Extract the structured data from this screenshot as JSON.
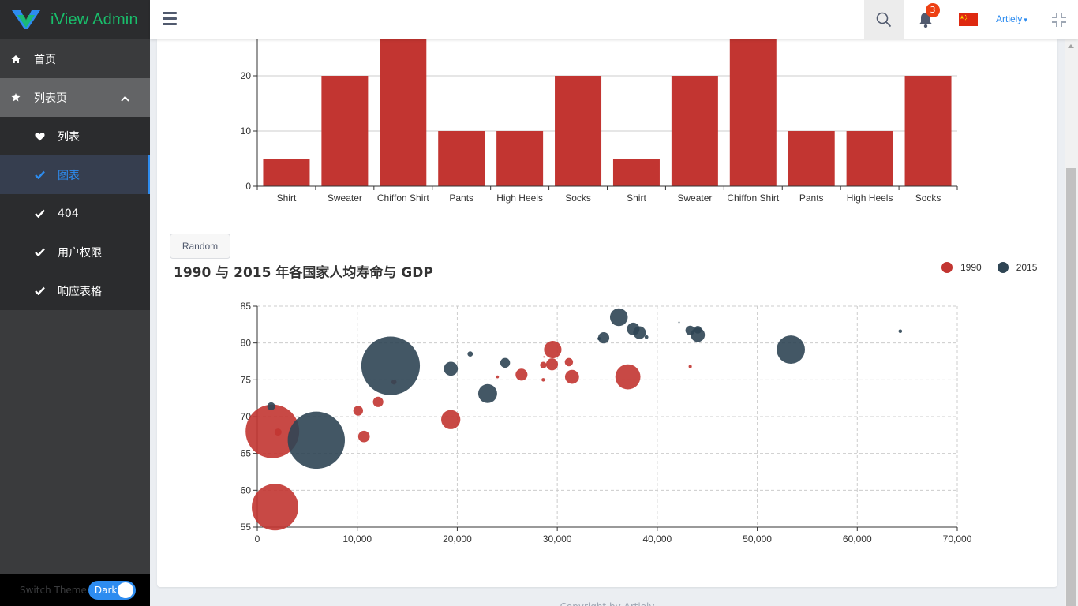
{
  "app": {
    "title": "iView Admin"
  },
  "sidebar": {
    "home": "首页",
    "list_page": "列表页",
    "items": [
      {
        "label": "列表",
        "icon": "heart-icon"
      },
      {
        "label": "图表",
        "icon": "check-icon"
      },
      {
        "label": "404",
        "icon": "check-icon"
      },
      {
        "label": "用户权限",
        "icon": "check-icon"
      },
      {
        "label": "响应表格",
        "icon": "check-icon"
      }
    ],
    "theme_label": "Switch Theme",
    "theme_value": "Dark"
  },
  "header": {
    "notification_count": "3",
    "user_name": "Artiely",
    "user_caret": "▾"
  },
  "button": {
    "random": "Random"
  },
  "footer": {
    "text": "Copyright by Artiely"
  },
  "colors": {
    "primary": "#2d8cf0",
    "bar": "#c23531",
    "series_1990": "#c23531",
    "series_2015": "#2f4554"
  },
  "chart_data": [
    {
      "type": "bar",
      "categories": [
        "Shirt",
        "Sweater",
        "Chiffon Shirt",
        "Pants",
        "High Heels",
        "Socks",
        "Shirt",
        "Sweater",
        "Chiffon Shirt",
        "Pants",
        "High Heels",
        "Socks"
      ],
      "values": [
        5,
        20,
        36,
        10,
        10,
        20,
        5,
        20,
        36,
        10,
        10,
        20
      ],
      "y_ticks": [
        "0",
        "10",
        "20"
      ],
      "ylim": [
        0,
        40
      ]
    },
    {
      "type": "scatter",
      "title": "1990 与 2015 年各国家人均寿命与 GDP",
      "xlim": [
        0,
        70000
      ],
      "ylim": [
        55,
        85
      ],
      "x_ticks": [
        "0",
        "10,000",
        "20,000",
        "30,000",
        "40,000",
        "50,000",
        "60,000",
        "70,000"
      ],
      "y_ticks": [
        "55",
        "60",
        "65",
        "70",
        "75",
        "80",
        "85"
      ],
      "series": [
        {
          "name": "1990",
          "points": [
            [
              28604,
              77,
              17096869
            ],
            [
              31163,
              77.4,
              27662440
            ],
            [
              1516,
              68,
              1154605773
            ],
            [
              13670,
              74.7,
              10582082
            ],
            [
              28599,
              75,
              4986705
            ],
            [
              29476,
              77.1,
              56943299
            ],
            [
              31476,
              75.4,
              78958237
            ],
            [
              28666,
              78.1,
              254830
            ],
            [
              1777,
              57.7,
              870601776
            ],
            [
              29550,
              79.1,
              122249285
            ],
            [
              2076,
              67.9,
              20194354
            ],
            [
              12087,
              72,
              42972254
            ],
            [
              24021,
              75.4,
              3397534
            ],
            [
              43296,
              76.8,
              4240375
            ],
            [
              10088,
              70.8,
              38195258
            ],
            [
              19349,
              69.6,
              147568552
            ],
            [
              10670,
              67.3,
              53994605
            ],
            [
              26424,
              75.7,
              57110117
            ],
            [
              37062,
              75.4,
              252847810
            ]
          ]
        },
        {
          "name": "2015",
          "points": [
            [
              44056,
              81.8,
              23968973
            ],
            [
              43294,
              81.7,
              35939927
            ],
            [
              13334,
              76.9,
              1376048943
            ],
            [
              21291,
              78.5,
              11389562
            ],
            [
              38923,
              80.8,
              5503457
            ],
            [
              37599,
              81.9,
              64395345
            ],
            [
              44053,
              81.1,
              80688545
            ],
            [
              42182,
              82.8,
              329425
            ],
            [
              5903,
              66.8,
              1311050527
            ],
            [
              36162,
              83.5,
              126573481
            ],
            [
              1390,
              71.4,
              25155317
            ],
            [
              34644,
              80.7,
              50293439
            ],
            [
              34186,
              80.6,
              4528526
            ],
            [
              64304,
              81.6,
              5210967
            ],
            [
              24787,
              77.3,
              38611794
            ],
            [
              23038,
              73.13,
              143456918
            ],
            [
              19360,
              76.5,
              78665830
            ],
            [
              38225,
              81.4,
              64715810
            ],
            [
              53354,
              79.1,
              321773631
            ]
          ]
        }
      ]
    }
  ]
}
